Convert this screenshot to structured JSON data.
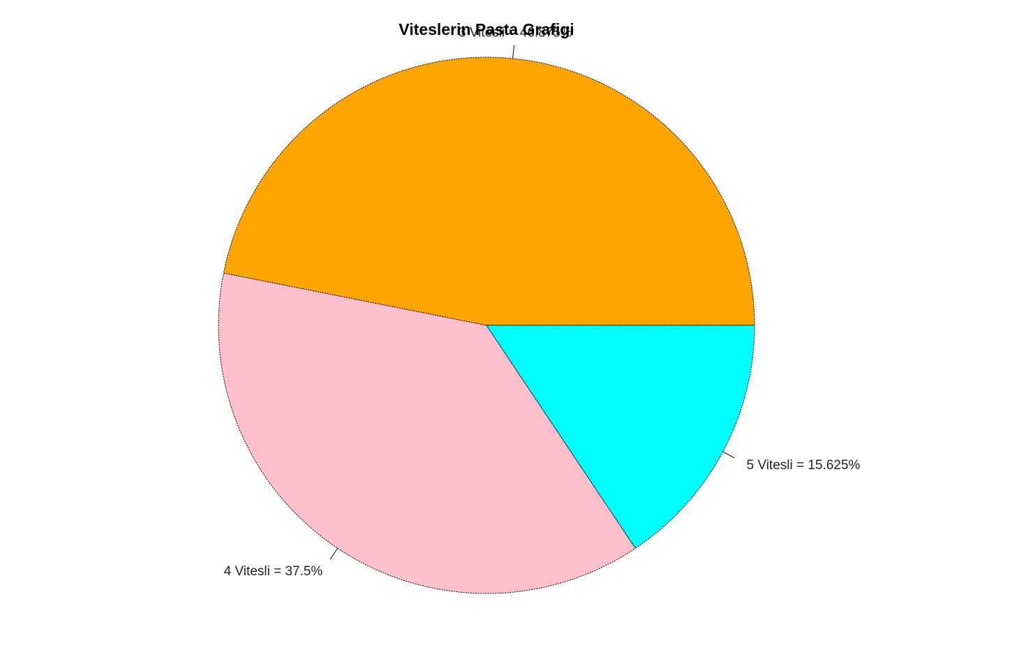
{
  "chart_data": {
    "type": "pie",
    "title": "Viteslerin Pasta Grafigi",
    "start_angle_deg": 0,
    "direction": "counterclockwise",
    "border": "dashed",
    "slices": [
      {
        "label": "3 Vitesli = 46.875%",
        "value": 46.875,
        "color": "#FFA500"
      },
      {
        "label": "4 Vitesli = 37.5%",
        "value": 37.5,
        "color": "#FFC0CB"
      },
      {
        "label": "5 Vitesli = 15.625%",
        "value": 15.625,
        "color": "#00FFFF"
      }
    ]
  }
}
